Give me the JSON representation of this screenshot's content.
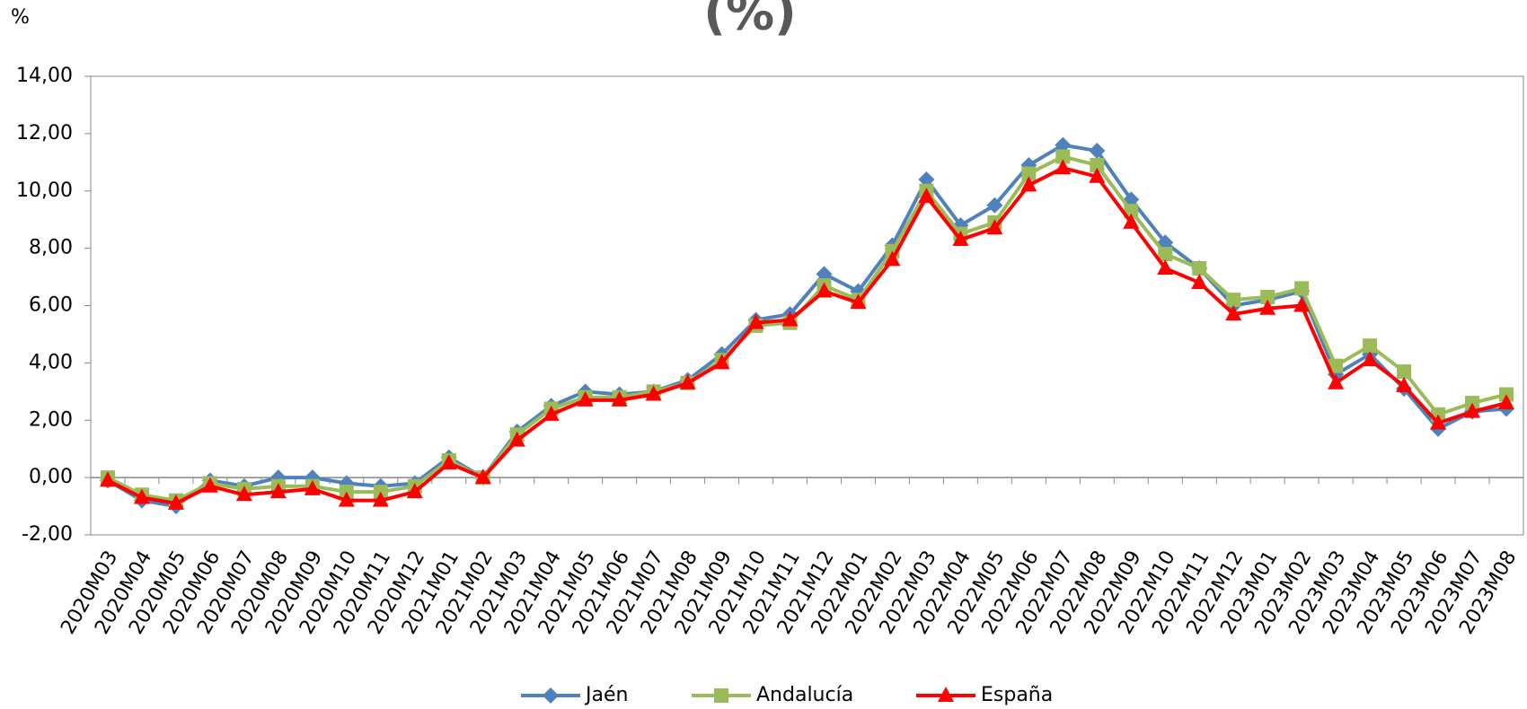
{
  "chart_data": {
    "type": "line",
    "title": "(%)",
    "y_label": "%",
    "categories": [
      "2020M03",
      "2020M04",
      "2020M05",
      "2020M06",
      "2020M07",
      "2020M08",
      "2020M09",
      "2020M10",
      "2020M11",
      "2020M12",
      "2021M01",
      "2021M02",
      "2021M03",
      "2021M04",
      "2021M05",
      "2021M06",
      "2021M07",
      "2021M08",
      "2021M09",
      "2021M10",
      "2021M11",
      "2021M12",
      "2022M01",
      "2022M02",
      "2022M03",
      "2022M04",
      "2022M05",
      "2022M06",
      "2022M07",
      "2022M08",
      "2022M09",
      "2022M10",
      "2022M11",
      "2022M12",
      "2023M01",
      "2023M02",
      "2023M03",
      "2023M04",
      "2023M05",
      "2023M06",
      "2023M07",
      "2023M08"
    ],
    "series": [
      {
        "name": "Jaén",
        "color": "#4f81bd",
        "marker": "diamond",
        "values": [
          -0.1,
          -0.8,
          -1.0,
          -0.1,
          -0.3,
          0.0,
          0.0,
          -0.2,
          -0.3,
          -0.2,
          0.7,
          0.0,
          1.6,
          2.5,
          3.0,
          2.9,
          3.0,
          3.4,
          4.3,
          5.5,
          5.7,
          7.1,
          6.5,
          8.1,
          10.4,
          8.8,
          9.5,
          10.9,
          11.6,
          11.4,
          9.7,
          8.2,
          7.3,
          6.0,
          6.2,
          6.5,
          3.6,
          4.3,
          3.1,
          1.7,
          2.3,
          2.4
        ]
      },
      {
        "name": "Andalucía",
        "color": "#9bbb59",
        "marker": "square",
        "values": [
          0.0,
          -0.6,
          -0.8,
          -0.2,
          -0.4,
          -0.3,
          -0.3,
          -0.5,
          -0.5,
          -0.3,
          0.6,
          0.0,
          1.5,
          2.4,
          2.8,
          2.8,
          3.0,
          3.3,
          4.1,
          5.3,
          5.4,
          6.7,
          6.2,
          7.9,
          10.0,
          8.5,
          8.9,
          10.6,
          11.2,
          10.9,
          9.3,
          7.8,
          7.3,
          6.2,
          6.3,
          6.6,
          3.9,
          4.6,
          3.7,
          2.2,
          2.6,
          2.9
        ]
      },
      {
        "name": "España",
        "color": "#ff0000",
        "marker": "triangle",
        "values": [
          -0.1,
          -0.7,
          -0.9,
          -0.3,
          -0.6,
          -0.5,
          -0.4,
          -0.8,
          -0.8,
          -0.5,
          0.5,
          0.0,
          1.3,
          2.2,
          2.7,
          2.7,
          2.9,
          3.3,
          4.0,
          5.4,
          5.5,
          6.5,
          6.1,
          7.6,
          9.8,
          8.3,
          8.7,
          10.2,
          10.8,
          10.5,
          8.9,
          7.3,
          6.8,
          5.7,
          5.9,
          6.0,
          3.3,
          4.1,
          3.2,
          1.9,
          2.3,
          2.6
        ]
      }
    ],
    "ylim": [
      -2,
      14
    ],
    "yticks": [
      {
        "value": -2,
        "label": "-2,00"
      },
      {
        "value": 0,
        "label": "0,00"
      },
      {
        "value": 2,
        "label": "2,00"
      },
      {
        "value": 4,
        "label": "4,00"
      },
      {
        "value": 6,
        "label": "6,00"
      },
      {
        "value": 8,
        "label": "8,00"
      },
      {
        "value": 10,
        "label": "10,00"
      },
      {
        "value": 12,
        "label": "12,00"
      },
      {
        "value": 14,
        "label": "14,00"
      }
    ],
    "grid": false,
    "legend": "bottom"
  }
}
